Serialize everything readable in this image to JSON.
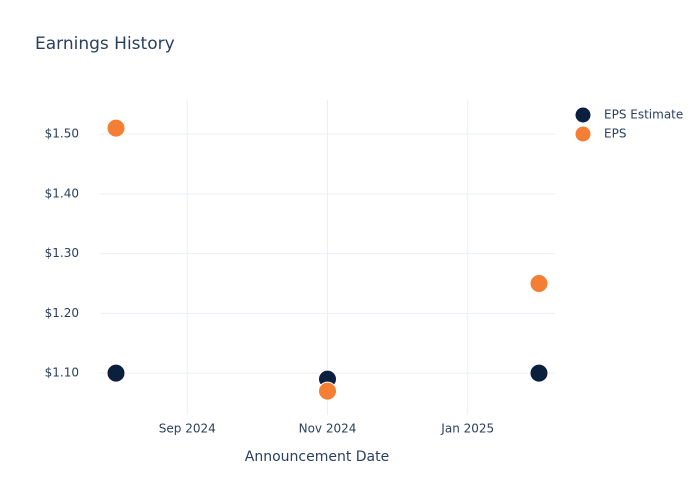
{
  "chart_data": {
    "type": "scatter",
    "title": "Earnings History",
    "x_label": "Announcement Date",
    "x": [
      "2024-08",
      "2024-11",
      "2025-02"
    ],
    "series": [
      {
        "name": "EPS Estimate",
        "color": "#0b1f3f",
        "values": [
          1.1,
          1.09,
          1.1
        ]
      },
      {
        "name": "EPS",
        "color": "#f47f34",
        "values": [
          1.51,
          1.07,
          1.25
        ]
      }
    ],
    "xlim": [
      "2024-08",
      "2025-02"
    ],
    "xticks": [
      {
        "value": "2024-09",
        "label": "Sep 2024"
      },
      {
        "value": "2024-11",
        "label": "Nov 2024"
      },
      {
        "value": "2025-01",
        "label": "Jan 2025"
      }
    ],
    "ylim": [
      1.03,
      1.557
    ],
    "yticks": [
      {
        "value": 1.1,
        "label": "$1.10"
      },
      {
        "value": 1.2,
        "label": "$1.20"
      },
      {
        "value": 1.3,
        "label": "$1.30"
      },
      {
        "value": 1.4,
        "label": "$1.40"
      },
      {
        "value": 1.5,
        "label": "$1.50"
      }
    ],
    "grid": true,
    "legend_position": "top-right"
  }
}
